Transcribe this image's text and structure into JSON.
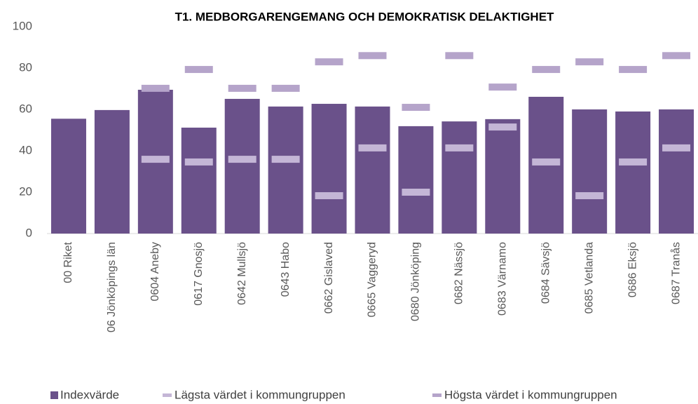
{
  "chart_data": {
    "type": "bar",
    "title": "T1. MEDBORGARENGEMANG OCH DEMOKRATISK DELAKTIGHET",
    "categories": [
      "00 Riket",
      "06 Jönköpings län",
      "0604 Aneby",
      "0617 Gnosjö",
      "0642 Mullsjö",
      "0643 Habo",
      "0662 Gislaved",
      "0665 Vaggeryd",
      "0680 Jönköping",
      "0682 Nässjö",
      "0683 Värnamo",
      "0684 Sävsjö",
      "0685 Vetlanda",
      "0686 Eksjö",
      "0687 Tranås"
    ],
    "series": [
      {
        "name": "Indexvärde",
        "color": "#6a518a",
        "values": [
          55.5,
          59.7,
          69.5,
          51.2,
          65.1,
          61.4,
          62.7,
          61.4,
          51.9,
          54.2,
          55.3,
          66.1,
          60,
          59,
          60
        ]
      },
      {
        "name": "Lägsta värdet i kommungruppen",
        "color": "#c4b6d6",
        "values": [
          null,
          null,
          35.9,
          34.6,
          35.9,
          35.9,
          18.3,
          41.4,
          20,
          41.4,
          51.5,
          34.6,
          18.3,
          34.6,
          41.4
        ]
      },
      {
        "name": "Högsta värdet i kommungruppen",
        "color": "#b5a4ca",
        "values": [
          null,
          null,
          70.2,
          79.3,
          70.2,
          70.2,
          83,
          86,
          61,
          86,
          70.8,
          79.3,
          83,
          79.3,
          86
        ]
      }
    ],
    "ylim": [
      0,
      100
    ],
    "yticks": [
      0,
      20,
      40,
      60,
      80,
      100
    ]
  }
}
